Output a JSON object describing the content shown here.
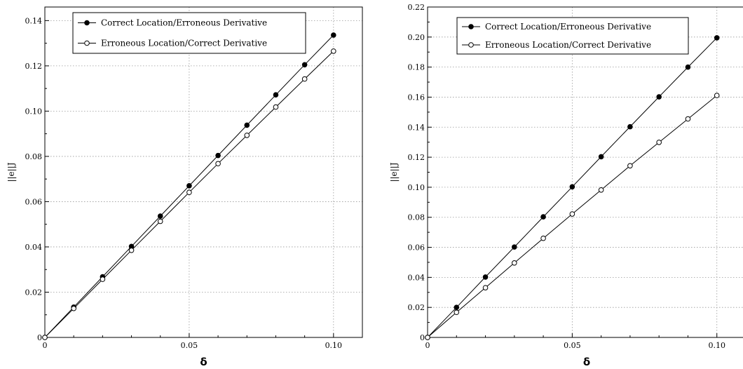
{
  "chart_data": [
    {
      "type": "line",
      "xlabel": "δ",
      "ylabel": "||e||J",
      "xlim": [
        0,
        0.11
      ],
      "ylim": [
        0,
        0.146
      ],
      "xticks": [
        0,
        0.05,
        0.1
      ],
      "xtick_labels": [
        "0",
        "0.05",
        "0.10"
      ],
      "yticks": [
        0,
        0.02,
        0.04,
        0.06,
        0.08,
        0.1,
        0.12,
        0.14
      ],
      "ytick_labels": [
        "0",
        "0.02",
        "0.04",
        "0.06",
        "0.08",
        "0.10",
        "0.12",
        "0.14"
      ],
      "grid": true,
      "legend_position": "top-left",
      "x": [
        0,
        0.01,
        0.02,
        0.03,
        0.04,
        0.05,
        0.06,
        0.07,
        0.08,
        0.09,
        0.1
      ],
      "series": [
        {
          "name": "Correct Location/Erroneous Derivative",
          "marker": "filled-circle",
          "values": [
            0,
            0.0134,
            0.0268,
            0.0402,
            0.0536,
            0.067,
            0.0804,
            0.0938,
            0.1072,
            0.1205,
            0.1336
          ]
        },
        {
          "name": "Erroneous Location/Correct Derivative",
          "marker": "open-circle",
          "values": [
            0,
            0.0128,
            0.0257,
            0.0385,
            0.0513,
            0.0641,
            0.0768,
            0.0893,
            0.1018,
            0.1142,
            0.1265
          ]
        }
      ]
    },
    {
      "type": "line",
      "xlabel": "δ",
      "ylabel": "||e||J",
      "xlim": [
        0,
        0.11
      ],
      "ylim": [
        0,
        0.22
      ],
      "xticks": [
        0,
        0.05,
        0.1
      ],
      "xtick_labels": [
        "0",
        "0.05",
        "0.10"
      ],
      "yticks": [
        0,
        0.02,
        0.04,
        0.06,
        0.08,
        0.1,
        0.12,
        0.14,
        0.16,
        0.18,
        0.2,
        0.22
      ],
      "ytick_labels": [
        "0",
        "0.02",
        "0.04",
        "0.06",
        "0.08",
        "0.10",
        "0.12",
        "0.14",
        "0.16",
        "0.18",
        "0.20",
        "0.22"
      ],
      "grid": true,
      "legend_position": "top-left",
      "x": [
        0,
        0.01,
        0.02,
        0.03,
        0.04,
        0.05,
        0.06,
        0.07,
        0.08,
        0.09,
        0.1
      ],
      "series": [
        {
          "name": "Correct Location/Erroneous Derivative",
          "marker": "filled-circle",
          "values": [
            0,
            0.02,
            0.0402,
            0.0602,
            0.0803,
            0.1003,
            0.1203,
            0.1403,
            0.1602,
            0.18,
            0.1995
          ]
        },
        {
          "name": "Erroneous Location/Correct Derivative",
          "marker": "open-circle",
          "values": [
            0,
            0.0167,
            0.0331,
            0.0496,
            0.066,
            0.0822,
            0.0982,
            0.1143,
            0.1299,
            0.1455,
            0.1611
          ]
        }
      ]
    }
  ]
}
